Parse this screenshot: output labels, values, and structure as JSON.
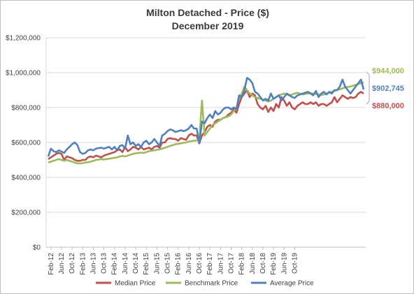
{
  "chart_data": {
    "type": "line",
    "title": "Milton Detached - Price ($)",
    "subtitle": "December 2019",
    "xlabel": "",
    "ylabel": "",
    "ylim": [
      0,
      1200000
    ],
    "y_ticks": [
      "$0",
      "$200,000",
      "$400,000",
      "$600,000",
      "$800,000",
      "$1,000,000",
      "$1,200,000"
    ],
    "grid": "horizontal",
    "legend_position": "bottom",
    "x_tick_labels": [
      "Feb-12",
      "Jun-12",
      "Oct-12",
      "Feb-13",
      "Jun-13",
      "Oct-13",
      "Feb-14",
      "Jun-14",
      "Oct-14",
      "Feb-15",
      "Jun-15",
      "Oct-15",
      "Feb-16",
      "Jun-16",
      "Oct-16",
      "Feb-17",
      "Jun-17",
      "Oct-17",
      "Feb-18",
      "Jun-18",
      "Oct-18",
      "Feb-19",
      "Jun-19",
      "Oct-19"
    ],
    "x_start": "Jan-12",
    "x_end": "Dec-19",
    "series": [
      {
        "name": "Median Price",
        "color": "#c0504d",
        "values": [
          505000,
          515000,
          525000,
          535000,
          540000,
          535000,
          500000,
          520000,
          515000,
          510000,
          500000,
          495000,
          495000,
          500000,
          500000,
          515000,
          520000,
          515000,
          525000,
          520000,
          515000,
          525000,
          530000,
          535000,
          540000,
          545000,
          555000,
          560000,
          545000,
          575000,
          550000,
          560000,
          575000,
          570000,
          560000,
          575000,
          560000,
          565000,
          570000,
          560000,
          575000,
          580000,
          570000,
          600000,
          600000,
          620000,
          625000,
          620000,
          620000,
          610000,
          625000,
          620000,
          615000,
          640000,
          650000,
          640000,
          640000,
          595000,
          640000,
          660000,
          690000,
          700000,
          690000,
          720000,
          730000,
          730000,
          740000,
          745000,
          760000,
          770000,
          790000,
          770000,
          820000,
          860000,
          880000,
          900000,
          860000,
          880000,
          870000,
          820000,
          800000,
          790000,
          810000,
          775000,
          800000,
          780000,
          820000,
          800000,
          860000,
          840000,
          810000,
          830000,
          800000,
          790000,
          810000,
          820000,
          830000,
          820000,
          820000,
          830000,
          820000,
          830000,
          810000,
          820000,
          820000,
          810000,
          820000,
          830000,
          860000,
          830000,
          850000,
          870000,
          860000,
          850000,
          860000,
          855000,
          860000,
          880000,
          890000,
          880000
        ]
      },
      {
        "name": "Benchmark Price",
        "color": "#9bbb59",
        "values": [
          485000,
          490000,
          495000,
          500000,
          505000,
          500000,
          495000,
          500000,
          495000,
          490000,
          485000,
          480000,
          480000,
          482000,
          485000,
          487000,
          490000,
          495000,
          500000,
          502000,
          505000,
          503000,
          505000,
          507000,
          510000,
          512000,
          515000,
          520000,
          523000,
          520000,
          525000,
          530000,
          535000,
          538000,
          540000,
          542000,
          540000,
          545000,
          550000,
          553000,
          555000,
          558000,
          560000,
          565000,
          570000,
          575000,
          580000,
          585000,
          590000,
          592000,
          595000,
          598000,
          600000,
          605000,
          608000,
          610000,
          612000,
          615000,
          840000,
          640000,
          660000,
          680000,
          700000,
          710000,
          720000,
          730000,
          740000,
          745000,
          750000,
          760000,
          780000,
          800000,
          850000,
          880000,
          920000,
          900000,
          880000,
          870000,
          860000,
          855000,
          850000,
          845000,
          840000,
          835000,
          840000,
          850000,
          860000,
          870000,
          875000,
          880000,
          875000,
          870000,
          875000,
          880000,
          885000,
          880000,
          875000,
          878000,
          880000,
          882000,
          880000,
          878000,
          875000,
          872000,
          875000,
          880000,
          885000,
          890000,
          895000,
          900000,
          905000,
          910000,
          915000,
          918000,
          920000,
          925000,
          930000,
          935000,
          940000,
          944000
        ]
      },
      {
        "name": "Average Price",
        "color": "#4f81bd",
        "values": [
          520000,
          565000,
          550000,
          545000,
          555000,
          548000,
          540000,
          560000,
          575000,
          590000,
          600000,
          585000,
          545000,
          535000,
          540000,
          555000,
          560000,
          555000,
          565000,
          568000,
          570000,
          565000,
          570000,
          575000,
          560000,
          575000,
          555000,
          580000,
          585000,
          565000,
          640000,
          590000,
          600000,
          580000,
          590000,
          575000,
          600000,
          610000,
          590000,
          600000,
          620000,
          600000,
          580000,
          640000,
          650000,
          665000,
          675000,
          670000,
          660000,
          665000,
          670000,
          665000,
          670000,
          680000,
          700000,
          680000,
          680000,
          595000,
          720000,
          710000,
          740000,
          760000,
          740000,
          780000,
          760000,
          770000,
          790000,
          800000,
          800000,
          790000,
          800000,
          790000,
          870000,
          860000,
          900000,
          970000,
          960000,
          940000,
          890000,
          880000,
          860000,
          840000,
          850000,
          840000,
          880000,
          850000,
          860000,
          870000,
          840000,
          860000,
          880000,
          870000,
          860000,
          855000,
          870000,
          875000,
          880000,
          885000,
          890000,
          880000,
          870000,
          895000,
          860000,
          880000,
          890000,
          875000,
          890000,
          880000,
          900000,
          900000,
          920000,
          960000,
          920000,
          900000,
          880000,
          900000,
          920000,
          940000,
          960000,
          902745
        ]
      }
    ],
    "callouts": [
      {
        "series": "Benchmark Price",
        "label": "$944,000",
        "color": "#9bbb59"
      },
      {
        "series": "Average Price",
        "label": "$902,745",
        "color": "#4f81bd"
      },
      {
        "series": "Median Price",
        "label": "$880,000",
        "color": "#c0504d"
      }
    ]
  }
}
